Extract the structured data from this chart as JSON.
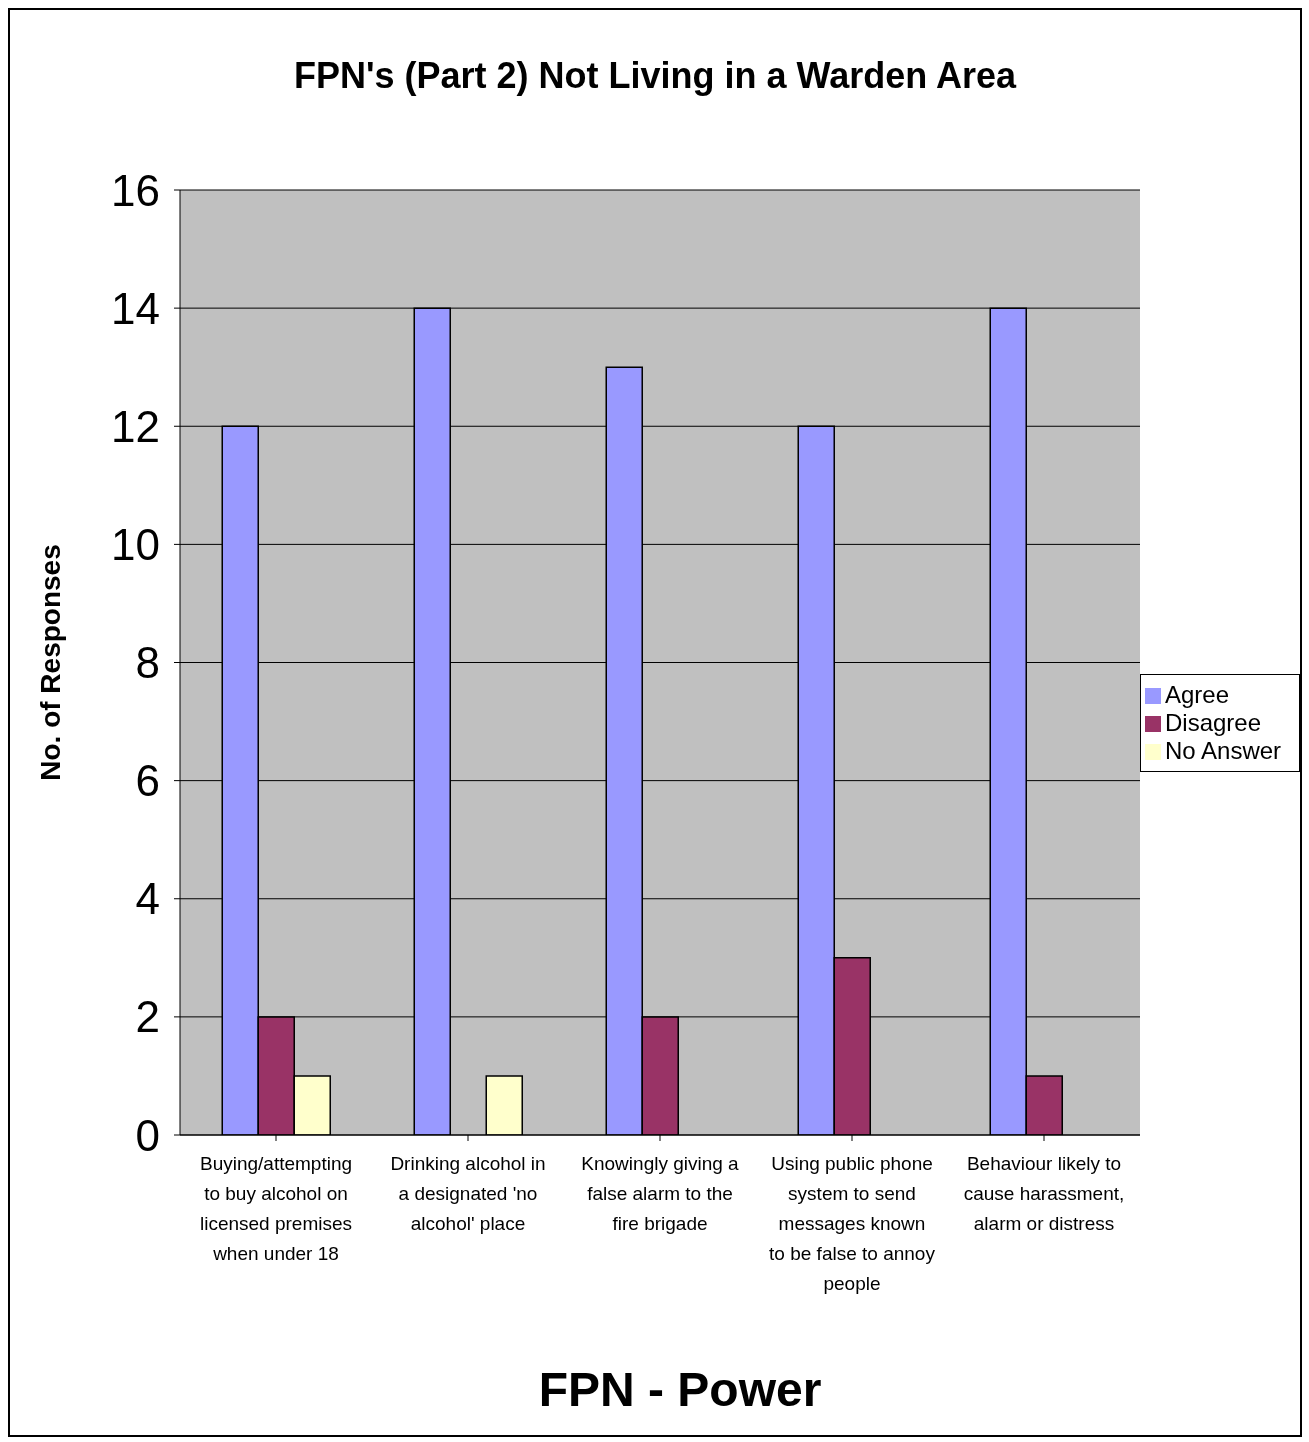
{
  "chart_data": {
    "type": "bar",
    "title": "FPN's (Part 2) Not Living in a Warden Area",
    "xlabel": "FPN - Power",
    "ylabel": "No. of Responses",
    "categories": [
      "Buying/attempting to buy alcohol on licensed premises when under 18",
      "Drinking alcohol in a designated 'no alcohol' place",
      "Knowingly giving a false alarm to the fire brigade",
      "Using public phone system to send messages known to be false to annoy people",
      "Behaviour likely to cause harassment, alarm or distress"
    ],
    "series": [
      {
        "name": "Agree",
        "color": "#9999ff",
        "values": [
          12,
          14,
          13,
          12,
          14
        ]
      },
      {
        "name": "Disagree",
        "color": "#993366",
        "values": [
          2,
          0,
          2,
          3,
          1
        ]
      },
      {
        "name": "No Answer",
        "color": "#ffffcc",
        "values": [
          1,
          1,
          0,
          0,
          0
        ]
      }
    ],
    "ylim": [
      0,
      16
    ],
    "yticks": [
      0,
      2,
      4,
      6,
      8,
      10,
      12,
      14,
      16
    ],
    "grid": "y",
    "legend": "right"
  }
}
